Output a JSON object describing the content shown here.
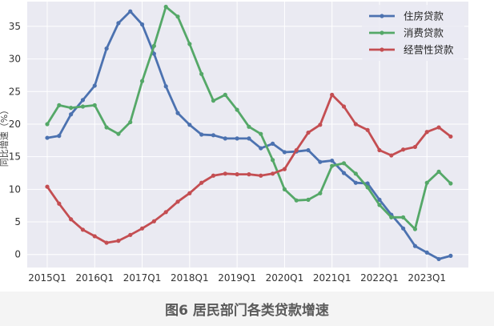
{
  "caption": "图6  居民部门各类贷款增速",
  "chart_data": {
    "type": "line",
    "title": "",
    "xlabel": "",
    "ylabel": "同比增速（%）",
    "ylim": [
      -2,
      38.8
    ],
    "yticks": [
      0,
      5,
      10,
      15,
      20,
      25,
      30,
      35
    ],
    "x_tick_labels": [
      "2015Q1",
      "2016Q1",
      "2017Q1",
      "2018Q1",
      "2019Q1",
      "2020Q1",
      "2021Q1",
      "2022Q1",
      "2023Q1"
    ],
    "x_tick_index": [
      0,
      4,
      8,
      12,
      16,
      20,
      24,
      28,
      32
    ],
    "x": [
      "2015Q1",
      "2015Q2",
      "2015Q3",
      "2015Q4",
      "2016Q1",
      "2016Q2",
      "2016Q3",
      "2016Q4",
      "2017Q1",
      "2017Q2",
      "2017Q3",
      "2017Q4",
      "2018Q1",
      "2018Q2",
      "2018Q3",
      "2018Q4",
      "2019Q1",
      "2019Q2",
      "2019Q3",
      "2019Q4",
      "2020Q1",
      "2020Q2",
      "2020Q3",
      "2020Q4",
      "2021Q1",
      "2021Q2",
      "2021Q3",
      "2021Q4",
      "2022Q1",
      "2022Q2",
      "2022Q3",
      "2022Q4",
      "2023Q1",
      "2023Q2",
      "2023Q3"
    ],
    "grid": true,
    "legend_position": "top-right",
    "series": [
      {
        "name": "住房贷款",
        "color": "#4c72b0",
        "values": [
          17.9,
          18.2,
          21.5,
          23.7,
          25.9,
          31.6,
          35.5,
          37.3,
          35.3,
          30.8,
          25.8,
          21.7,
          19.9,
          18.4,
          18.3,
          17.8,
          17.8,
          17.8,
          16.3,
          17.0,
          15.7,
          15.8,
          16.0,
          14.2,
          14.4,
          12.5,
          11.0,
          10.9,
          8.4,
          6.1,
          4.0,
          1.3,
          0.3,
          -0.7,
          -0.2
        ]
      },
      {
        "name": "消费贷款",
        "color": "#55a868",
        "values": [
          20.0,
          22.9,
          22.5,
          22.7,
          22.9,
          19.5,
          18.5,
          20.3,
          26.6,
          32.0,
          38.0,
          36.5,
          32.3,
          27.7,
          23.6,
          24.5,
          22.2,
          19.6,
          18.5,
          14.5,
          10.0,
          8.3,
          8.4,
          9.4,
          13.6,
          14.0,
          12.4,
          10.3,
          7.6,
          5.7,
          5.7,
          3.9,
          11.0,
          12.7,
          10.9
        ]
      },
      {
        "name": "经营性贷款",
        "color": "#c44e52",
        "values": [
          10.4,
          7.8,
          5.4,
          3.8,
          2.8,
          1.8,
          2.1,
          3.0,
          4.0,
          5.1,
          6.5,
          8.1,
          9.4,
          11.0,
          12.1,
          12.4,
          12.3,
          12.3,
          12.1,
          12.4,
          13.1,
          16.0,
          18.7,
          19.9,
          24.5,
          22.7,
          20.0,
          19.1,
          16.0,
          15.2,
          16.1,
          16.5,
          18.8,
          19.5,
          18.1
        ]
      }
    ]
  }
}
